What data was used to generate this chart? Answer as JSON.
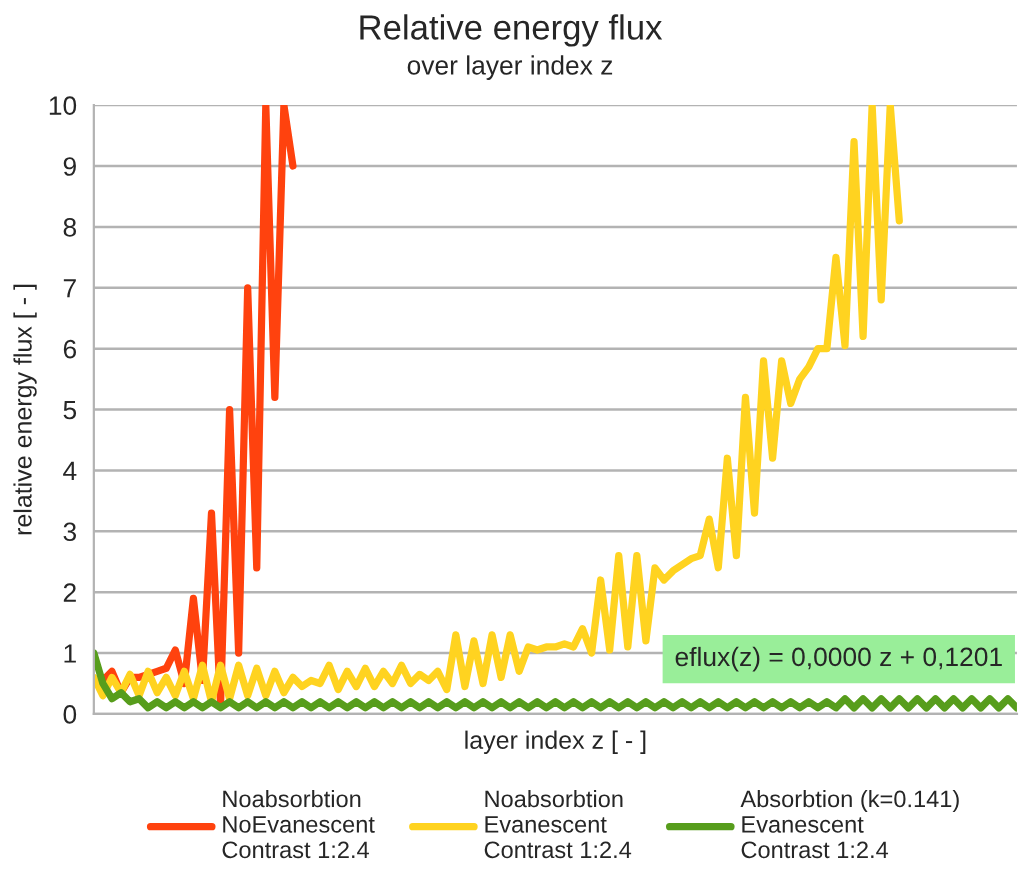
{
  "chart_data": {
    "type": "line",
    "title": "Relative energy flux",
    "subtitle": "over layer index z",
    "xlabel": "layer index z [ - ]",
    "ylabel": "relative energy flux [ - ]",
    "annotations": [
      "eflux(z) = 0,0000 z + 0,1201"
    ],
    "categories": [
      null,
      null,
      null,
      null,
      null,
      null,
      null,
      null,
      null,
      null,
      null,
      null,
      null,
      null,
      null,
      null,
      null,
      null,
      null,
      null,
      null,
      null,
      null,
      null,
      null,
      null,
      null,
      null,
      null,
      null,
      null,
      null,
      null,
      null,
      null,
      null,
      null,
      null,
      null,
      null,
      null,
      null,
      null,
      null,
      null,
      null,
      null,
      null,
      null,
      null,
      null,
      null,
      null,
      null,
      null,
      null,
      null,
      null,
      null,
      null,
      null,
      null,
      null,
      null,
      null,
      null,
      null,
      null,
      null,
      null,
      null,
      null,
      null,
      null,
      null,
      null,
      null,
      null,
      null,
      null,
      null,
      null,
      null,
      null,
      null,
      null,
      null,
      null,
      null,
      null,
      null,
      null,
      null,
      null,
      null,
      null,
      null,
      null,
      null,
      null,
      null,
      null,
      null
    ],
    "series": [
      {
        "name": "Noabsorbtion\nNoEvanescent\nContrast 1:2.4",
        "color": "#ff420e",
        "values": [
          null,
          0.55,
          0.7,
          0.35,
          0.6,
          0.6,
          0.65,
          0.7,
          0.75,
          1.05,
          0.5,
          1.9,
          0.55,
          3.3,
          0.15,
          5.0,
          1.0,
          7.0,
          2.4,
          10,
          5.2,
          10,
          9.0,
          null,
          null,
          null,
          null,
          null,
          null,
          null,
          null,
          null,
          null,
          null,
          null,
          null,
          null,
          null,
          null,
          null,
          null,
          null,
          null,
          null,
          null,
          null,
          null,
          null,
          null,
          null,
          null,
          null,
          null,
          null,
          null,
          null,
          null,
          null,
          null,
          null,
          null,
          null,
          null,
          null,
          null,
          null,
          null,
          null,
          null,
          null,
          null,
          null,
          null,
          null,
          null,
          null,
          null,
          null,
          null,
          null,
          null,
          null,
          null,
          null,
          null,
          null,
          null,
          null,
          null,
          null,
          null,
          null,
          null,
          null,
          null,
          null,
          null,
          null,
          null,
          null,
          null,
          null,
          null
        ]
      },
      {
        "name": "Noabsorbtion\nEvanescent\nContrast 1:2.4",
        "color": "#ffd320",
        "values": [
          0.6,
          0.3,
          0.6,
          0.35,
          0.65,
          0.3,
          0.7,
          0.35,
          0.6,
          0.3,
          0.7,
          0.25,
          0.8,
          0.2,
          0.8,
          0.25,
          0.8,
          0.3,
          0.75,
          0.3,
          0.7,
          0.35,
          0.6,
          0.45,
          0.55,
          0.5,
          0.8,
          0.4,
          0.7,
          0.45,
          0.75,
          0.45,
          0.7,
          0.5,
          0.8,
          0.5,
          0.65,
          0.55,
          0.7,
          0.4,
          1.3,
          0.45,
          1.2,
          0.5,
          1.3,
          0.6,
          1.3,
          0.7,
          1.1,
          1.05,
          1.1,
          1.1,
          1.15,
          1.1,
          1.4,
          1.0,
          2.2,
          1.05,
          2.6,
          1.1,
          2.6,
          1.2,
          2.4,
          2.2,
          2.35,
          2.45,
          2.55,
          2.6,
          3.2,
          2.4,
          4.2,
          2.6,
          5.2,
          3.3,
          5.8,
          4.2,
          5.8,
          5.1,
          5.5,
          5.7,
          6.0,
          6.0,
          7.5,
          6.05,
          9.4,
          6.2,
          10,
          6.8,
          10,
          8.1,
          null,
          null,
          null,
          null,
          null,
          null,
          null,
          null,
          null,
          null,
          null,
          null,
          null
        ]
      },
      {
        "name": "Absorbtion (k=0.141)\nEvanescent\nContrast 1:2.4",
        "color": "#579d1c",
        "values": [
          1.0,
          0.5,
          0.25,
          0.35,
          0.2,
          0.25,
          0.1,
          0.2,
          0.1,
          0.2,
          0.1,
          0.2,
          0.1,
          0.2,
          0.1,
          0.2,
          0.1,
          0.2,
          0.1,
          0.2,
          0.1,
          0.2,
          0.1,
          0.2,
          0.1,
          0.2,
          0.1,
          0.2,
          0.1,
          0.2,
          0.1,
          0.2,
          0.1,
          0.2,
          0.1,
          0.2,
          0.1,
          0.2,
          0.1,
          0.2,
          0.1,
          0.2,
          0.1,
          0.2,
          0.1,
          0.2,
          0.1,
          0.2,
          0.1,
          0.2,
          0.1,
          0.2,
          0.1,
          0.2,
          0.1,
          0.2,
          0.1,
          0.2,
          0.1,
          0.2,
          0.1,
          0.2,
          0.1,
          0.2,
          0.1,
          0.2,
          0.1,
          0.2,
          0.1,
          0.2,
          0.1,
          0.2,
          0.1,
          0.2,
          0.1,
          0.2,
          0.1,
          0.2,
          0.1,
          0.2,
          0.1,
          0.2,
          0.1,
          0.25,
          0.1,
          0.25,
          0.1,
          0.25,
          0.1,
          0.25,
          0.1,
          0.25,
          0.1,
          0.25,
          0.1,
          0.25,
          0.1,
          0.25,
          0.1,
          0.25,
          0.1,
          0.25,
          0.1
        ]
      }
    ],
    "ylim": [
      0,
      10
    ],
    "yticks": [
      0,
      1,
      2,
      3,
      4,
      5,
      6,
      7,
      8,
      9,
      10
    ],
    "grid": "y",
    "legend": "bottom",
    "tick_labels": "y"
  }
}
